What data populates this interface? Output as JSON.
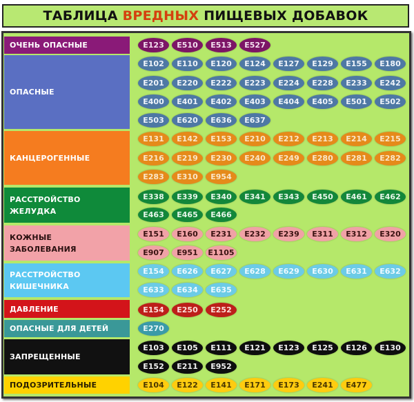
{
  "title": {
    "part1": "ТАБЛИЦА ",
    "highlight": "ВРЕДНЫХ",
    "part2": " ПИЩЕВЫХ ДОБАВОК",
    "highlight_color": "#d4400e"
  },
  "background_color": "#b5e86a",
  "categories": [
    {
      "label": "ОЧЕНЬ ОПАСНЫЕ",
      "label_bg": "#8a1a78",
      "label_color": "#ffffff",
      "chip_bg": "#7c1566",
      "chip_color": "#f4e0f0",
      "codes": [
        "E123",
        "E510",
        "E513",
        "E527"
      ]
    },
    {
      "label": "ОПАСНЫЕ",
      "label_bg": "#5a6fc2",
      "label_color": "#ffffff",
      "chip_bg": "#4e78a4",
      "chip_color": "#eef3fa",
      "codes": [
        "E102",
        "E110",
        "E120",
        "E124",
        "E127",
        "E129",
        "E155",
        "E180",
        "E201",
        "E220",
        "E222",
        "E223",
        "E224",
        "E228",
        "E233",
        "E242",
        "E400",
        "E401",
        "E402",
        "E403",
        "E404",
        "E405",
        "E501",
        "E502",
        "E503",
        "E620",
        "E636",
        "E637"
      ]
    },
    {
      "label": "КАНЦЕРОГЕННЫЕ",
      "label_bg": "#f57c1f",
      "label_color": "#ffffff",
      "chip_bg": "#e58a1a",
      "chip_color": "#fbe6c8",
      "codes": [
        "E131",
        "E142",
        "E153",
        "E210",
        "E212",
        "E213",
        "E214",
        "E215",
        "E216",
        "E219",
        "E230",
        "E240",
        "E249",
        "E280",
        "E281",
        "E282",
        "E283",
        "E310",
        "E954"
      ]
    },
    {
      "label": "РАССТРОЙСТВО\nЖЕЛУДКА",
      "label_bg": "#0f8a3a",
      "label_color": "#ffffff",
      "chip_bg": "#13873a",
      "chip_color": "#e6f6ea",
      "codes": [
        "E338",
        "E339",
        "E340",
        "E341",
        "E343",
        "E450",
        "E461",
        "E462",
        "E463",
        "E465",
        "E466"
      ]
    },
    {
      "label": "КОЖНЫЕ\nЗАБОЛЕВАНИЯ",
      "label_bg": "#f2a2a8",
      "label_color": "#2a1010",
      "chip_bg": "#f0a2a6",
      "chip_color": "#3a1212",
      "codes": [
        "E151",
        "E160",
        "E231",
        "E232",
        "E239",
        "E311",
        "E312",
        "E320",
        "E907",
        "E951",
        "E1105"
      ]
    },
    {
      "label": "РАССТРОЙСТВО\nКИШЕЧНИКА",
      "label_bg": "#5cc8f2",
      "label_color": "#ffffff",
      "chip_bg": "#6ccbe6",
      "chip_color": "#eefaff",
      "codes": [
        "E154",
        "E626",
        "E627",
        "E628",
        "E629",
        "E630",
        "E631",
        "E632",
        "E633",
        "E634",
        "E635"
      ]
    },
    {
      "label": "ДАВЛЕНИЕ",
      "label_bg": "#d3141a",
      "label_color": "#ffffff",
      "chip_bg": "#bd1f1a",
      "chip_color": "#fde0dc",
      "codes": [
        "E154",
        "E250",
        "E252"
      ]
    },
    {
      "label": "ОПАСНЫЕ ДЛЯ ДЕТЕЙ",
      "label_bg": "#3a9898",
      "label_color": "#ffffff",
      "chip_bg": "#3a9aa8",
      "chip_color": "#e6f6f8",
      "codes": [
        "E270"
      ]
    },
    {
      "label": "ЗАПРЕЩЕННЫЕ",
      "label_bg": "#111111",
      "label_color": "#ffffff",
      "chip_bg": "#0e0e0e",
      "chip_color": "#f0f0f0",
      "codes": [
        "E103",
        "E105",
        "E111",
        "E121",
        "E123",
        "E125",
        "E126",
        "E130",
        "E152",
        "E211",
        "E952"
      ]
    },
    {
      "label": "ПОДОЗРИТЕЛЬНЫЕ",
      "label_bg": "#ffd200",
      "label_color": "#2a2000",
      "chip_bg": "#ffcc10",
      "chip_color": "#4a3800",
      "codes": [
        "E104",
        "E122",
        "E141",
        "E171",
        "E173",
        "E241",
        "E477"
      ]
    }
  ]
}
